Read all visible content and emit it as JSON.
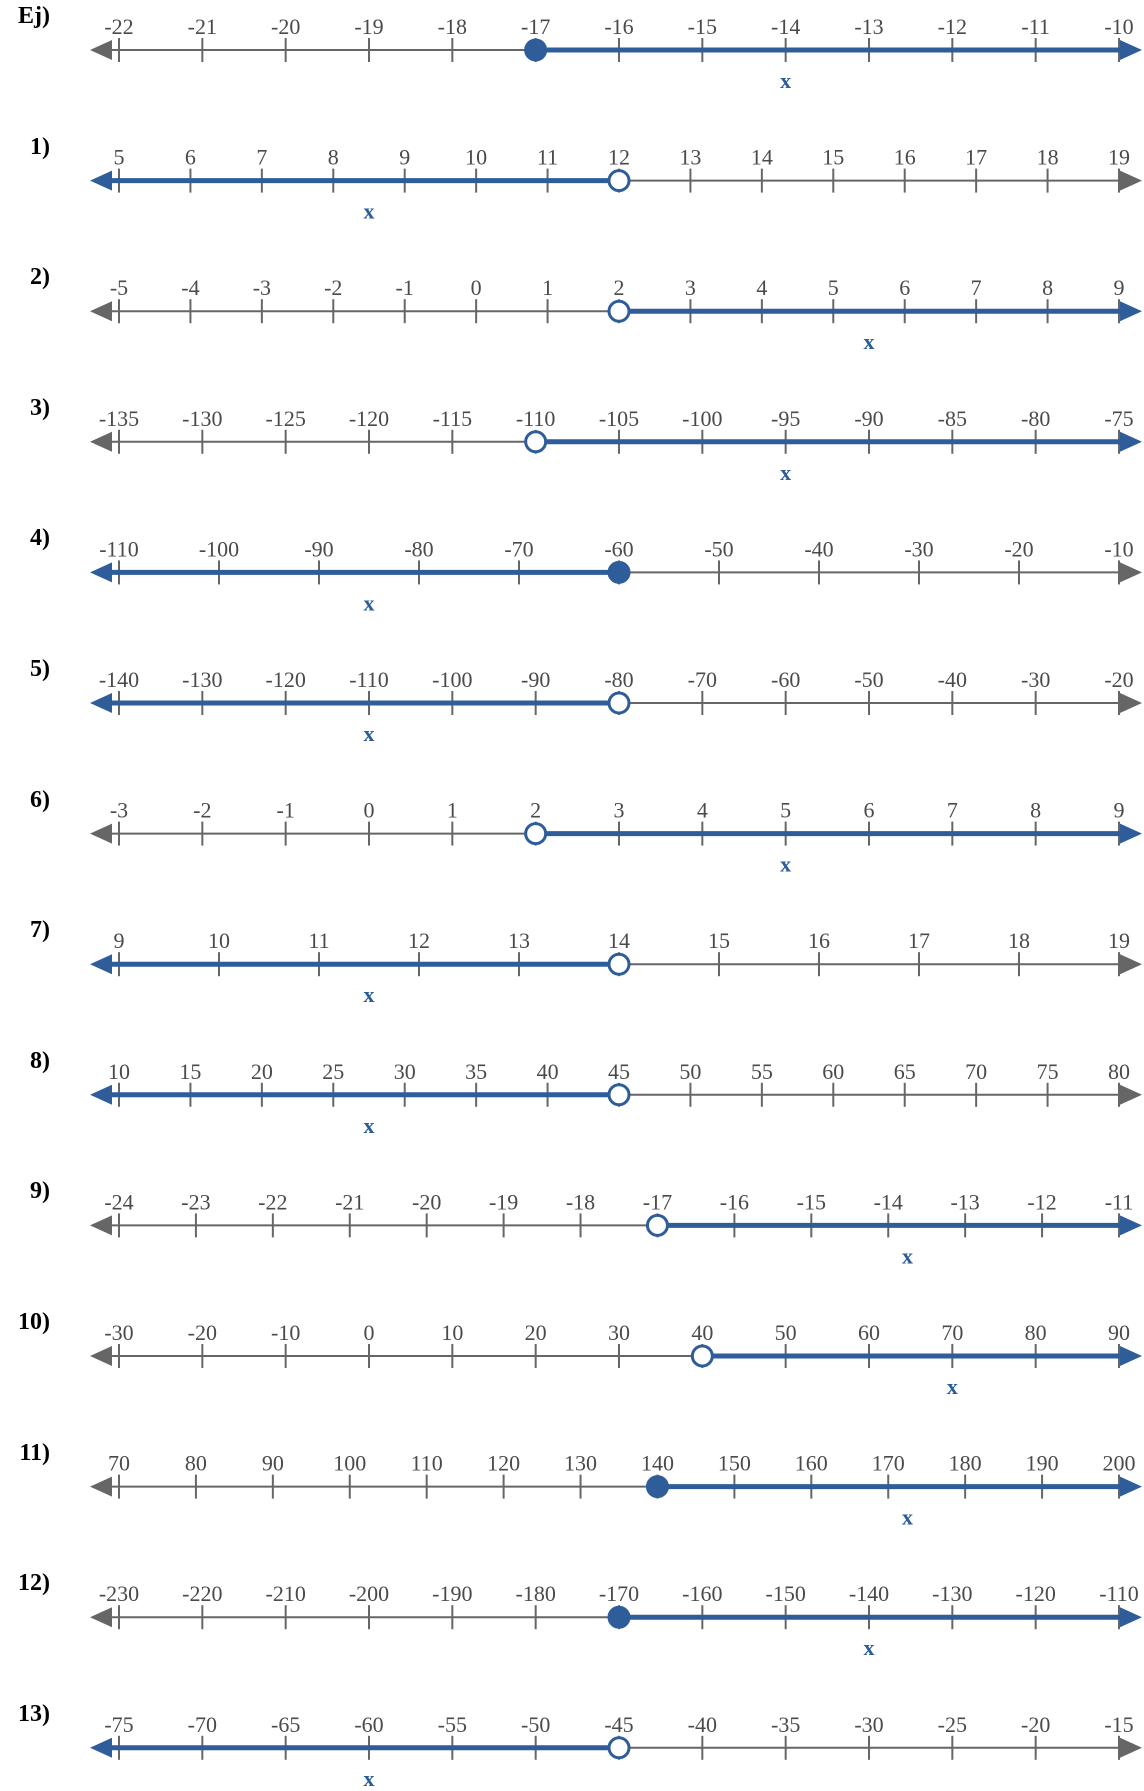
{
  "colors": {
    "axis": "#666666",
    "ray": "#2e5d9a",
    "text": "#4a4a4a",
    "label": "#000000"
  },
  "variable_label": "x",
  "number_lines": [
    {
      "label": "Ej)",
      "ticks": [
        "-22",
        "-21",
        "-20",
        "-19",
        "-18",
        "-17",
        "-16",
        "-15",
        "-14",
        "-13",
        "-12",
        "-11",
        "-10"
      ],
      "point": -17,
      "closed": true,
      "direction": "right"
    },
    {
      "label": "1)",
      "ticks": [
        "5",
        "6",
        "7",
        "8",
        "9",
        "10",
        "11",
        "12",
        "13",
        "14",
        "15",
        "16",
        "17",
        "18",
        "19"
      ],
      "point": 12,
      "closed": false,
      "direction": "left"
    },
    {
      "label": "2)",
      "ticks": [
        "-5",
        "-4",
        "-3",
        "-2",
        "-1",
        "0",
        "1",
        "2",
        "3",
        "4",
        "5",
        "6",
        "7",
        "8",
        "9"
      ],
      "point": 2,
      "closed": false,
      "direction": "right"
    },
    {
      "label": "3)",
      "ticks": [
        "-135",
        "-130",
        "-125",
        "-120",
        "-115",
        "-110",
        "-105",
        "-100",
        "-95",
        "-90",
        "-85",
        "-80",
        "-75"
      ],
      "point": -110,
      "closed": false,
      "direction": "right"
    },
    {
      "label": "4)",
      "ticks": [
        "-110",
        "-100",
        "-90",
        "-80",
        "-70",
        "-60",
        "-50",
        "-40",
        "-30",
        "-20",
        "-10"
      ],
      "point": -60,
      "closed": true,
      "direction": "left"
    },
    {
      "label": "5)",
      "ticks": [
        "-140",
        "-130",
        "-120",
        "-110",
        "-100",
        "-90",
        "-80",
        "-70",
        "-60",
        "-50",
        "-40",
        "-30",
        "-20"
      ],
      "point": -80,
      "closed": false,
      "direction": "left"
    },
    {
      "label": "6)",
      "ticks": [
        "-3",
        "-2",
        "-1",
        "0",
        "1",
        "2",
        "3",
        "4",
        "5",
        "6",
        "7",
        "8",
        "9"
      ],
      "point": 2,
      "closed": false,
      "direction": "right"
    },
    {
      "label": "7)",
      "ticks": [
        "9",
        "10",
        "11",
        "12",
        "13",
        "14",
        "15",
        "16",
        "17",
        "18",
        "19"
      ],
      "point": 14,
      "closed": false,
      "direction": "left"
    },
    {
      "label": "8)",
      "ticks": [
        "10",
        "15",
        "20",
        "25",
        "30",
        "35",
        "40",
        "45",
        "50",
        "55",
        "60",
        "65",
        "70",
        "75",
        "80"
      ],
      "point": 45,
      "closed": false,
      "direction": "left"
    },
    {
      "label": "9)",
      "ticks": [
        "-24",
        "-23",
        "-22",
        "-21",
        "-20",
        "-19",
        "-18",
        "-17",
        "-16",
        "-15",
        "-14",
        "-13",
        "-12",
        "-11"
      ],
      "point": -17,
      "closed": false,
      "direction": "right"
    },
    {
      "label": "10)",
      "ticks": [
        "-30",
        "-20",
        "-10",
        "0",
        "10",
        "20",
        "30",
        "40",
        "50",
        "60",
        "70",
        "80",
        "90"
      ],
      "point": 40,
      "closed": false,
      "direction": "right"
    },
    {
      "label": "11)",
      "ticks": [
        "70",
        "80",
        "90",
        "100",
        "110",
        "120",
        "130",
        "140",
        "150",
        "160",
        "170",
        "180",
        "190",
        "200"
      ],
      "point": 140,
      "closed": true,
      "direction": "right"
    },
    {
      "label": "12)",
      "ticks": [
        "-230",
        "-220",
        "-210",
        "-200",
        "-190",
        "-180",
        "-170",
        "-160",
        "-150",
        "-140",
        "-130",
        "-120",
        "-110"
      ],
      "point": -170,
      "closed": true,
      "direction": "right"
    },
    {
      "label": "13)",
      "ticks": [
        "-75",
        "-70",
        "-65",
        "-60",
        "-55",
        "-50",
        "-45",
        "-40",
        "-35",
        "-30",
        "-25",
        "-20",
        "-15"
      ],
      "point": -45,
      "closed": false,
      "direction": "left"
    }
  ]
}
